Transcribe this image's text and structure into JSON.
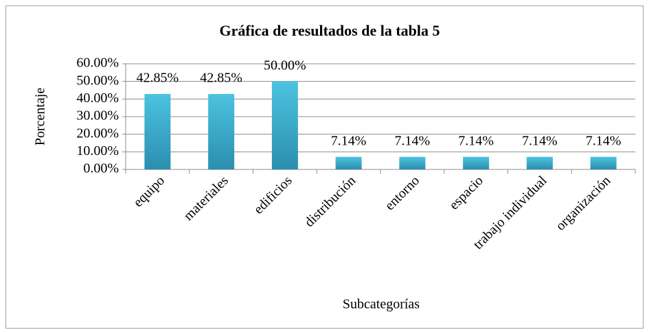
{
  "chart_data": {
    "type": "bar",
    "title": "Gráfica de resultados de la tabla 5",
    "x_label": "Subcategorías",
    "y_label": "Porcentaje",
    "categories": [
      "equipo",
      "materiales",
      "edificios",
      "distribución",
      "entorno",
      "espacio",
      "trabajo individual",
      "organización"
    ],
    "values": [
      42.85,
      42.85,
      50,
      7.14,
      7.14,
      7.14,
      7.14,
      7.14
    ],
    "value_labels": [
      "42.85%",
      "42.85%",
      "50.00%",
      "7.14%",
      "7.14%",
      "7.14%",
      "7.14%",
      "7.14%"
    ],
    "color": "#31a6c8",
    "ylim": [
      0,
      60
    ],
    "yticks": [
      {
        "value": 0,
        "label": "0.00%"
      },
      {
        "value": 10,
        "label": "10.00%"
      },
      {
        "value": 20,
        "label": "20.00%"
      },
      {
        "value": 30,
        "label": "30.00%"
      },
      {
        "value": 40,
        "label": "40.00%"
      },
      {
        "value": 50,
        "label": "50.00%"
      },
      {
        "value": 60,
        "label": "60.00%"
      }
    ],
    "grid": true
  }
}
